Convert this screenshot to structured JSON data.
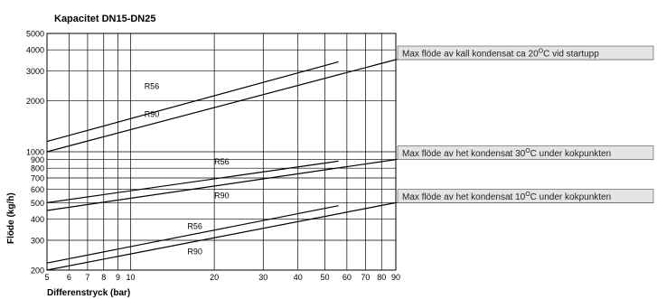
{
  "chart_data": {
    "type": "line",
    "title": "Kapacitet DN15-DN25",
    "xlabel": "Differenstryck (bar)",
    "ylabel": "Flöde (kg/h)",
    "x_scale": "log",
    "y_scale": "log",
    "xlim": [
      5,
      90
    ],
    "ylim": [
      200,
      5000
    ],
    "grid": true,
    "x_ticks": [
      5,
      6,
      7,
      8,
      9,
      10,
      20,
      30,
      40,
      50,
      60,
      70,
      80,
      90
    ],
    "y_ticks": [
      200,
      300,
      400,
      500,
      600,
      700,
      800,
      900,
      1000,
      2000,
      3000,
      4000,
      5000
    ],
    "series": [
      {
        "name": "R56",
        "group": "kall",
        "x": [
          5,
          56
        ],
        "y": [
          1150,
          3400
        ]
      },
      {
        "name": "R90",
        "group": "kall",
        "x": [
          5,
          90
        ],
        "y": [
          1000,
          3500
        ]
      },
      {
        "name": "R56",
        "group": "het30",
        "x": [
          5,
          56
        ],
        "y": [
          500,
          880
        ]
      },
      {
        "name": "R90",
        "group": "het30",
        "x": [
          5,
          90
        ],
        "y": [
          450,
          900
        ]
      },
      {
        "name": "R56",
        "group": "het10",
        "x": [
          5,
          56
        ],
        "y": [
          220,
          480
        ]
      },
      {
        "name": "R90",
        "group": "het10",
        "x": [
          5,
          90
        ],
        "y": [
          200,
          500
        ]
      }
    ],
    "series_labels": [
      {
        "text": "R56",
        "x": 11.2,
        "y": 2350
      },
      {
        "text": "R90",
        "x": 11.2,
        "y": 1600
      },
      {
        "text": "R56",
        "x": 20,
        "y": 840
      },
      {
        "text": "R90",
        "x": 20,
        "y": 530
      },
      {
        "text": "R56",
        "x": 16,
        "y": 350
      },
      {
        "text": "R90",
        "x": 16,
        "y": 248
      }
    ],
    "annotations": [
      {
        "pre": "Max flöde av kall kondensat ca 20",
        "sup": "O",
        "post": "C vid startupp",
        "y": 3500
      },
      {
        "pre": "Max flöde av het kondensat 30",
        "sup": "O",
        "post": "C under kokpunkten",
        "y": 900
      },
      {
        "pre": "Max flöde av het kondensat 10",
        "sup": "O",
        "post": "C under kokpunkten",
        "y": 500
      }
    ]
  }
}
